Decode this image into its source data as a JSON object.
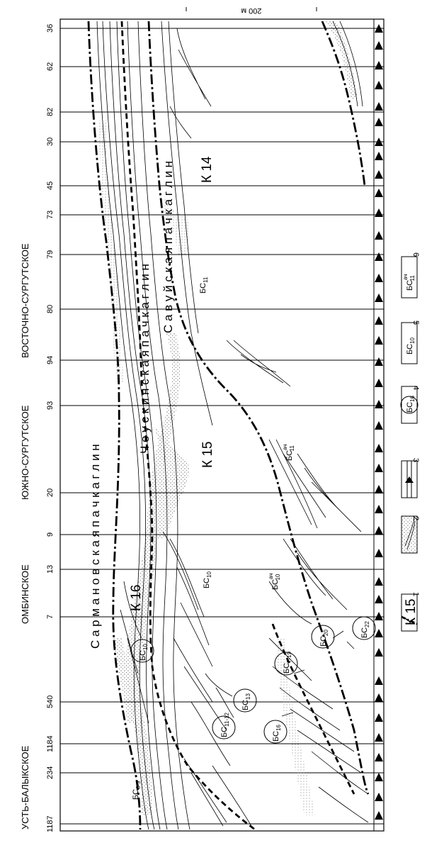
{
  "scale_label": "200 м",
  "areas": [
    {
      "name": "УСТЬ-БАЛЫКСКОЕ"
    },
    {
      "name": "ОМБИНСКОЕ"
    },
    {
      "name": "ЮЖНО-СУРГУТСКОЕ"
    },
    {
      "name": "ВОСТОЧНО-СУРГУТСКОЕ"
    }
  ],
  "wells": [
    "1187",
    "234",
    "1184",
    "540",
    "7",
    "13",
    "9",
    "20",
    "93",
    "94",
    "80",
    "79",
    "73",
    "45",
    "30",
    "82",
    "62",
    "36"
  ],
  "formations": {
    "k16": "К 16",
    "k15": "К 15",
    "k14": "К 14",
    "sarmanovskaya": "С а р м а н о в с к а я     п а ч к а     г л и н",
    "cheuskinskaya": "Ч е у с к и н с к а я     п а ч к а     г л и н",
    "savuiskaya": "С а в у й с к а я     п а ч к а     г л и н"
  },
  "beds": [
    {
      "base": "БС",
      "sub": "8-9"
    },
    {
      "base": "БС",
      "sub": "10"
    },
    {
      "base": "БС",
      "sub": "11-12"
    },
    {
      "base": "БС",
      "sub": "13"
    },
    {
      "base": "БС",
      "sub": "16"
    },
    {
      "base": "БС",
      "sub": "7-19"
    },
    {
      "base": "БС",
      "sub": "20"
    },
    {
      "base": "БС",
      "sub": "22"
    },
    {
      "base": "БС",
      "sub": "10"
    },
    {
      "base": "БС",
      "sup": "ач",
      "sub": "10"
    },
    {
      "base": "БС",
      "sup": "ач",
      "sub": "11"
    },
    {
      "base": "БС",
      "sub": "11"
    }
  ],
  "legend": [
    {
      "num": "1",
      "label": "К 15"
    },
    {
      "num": "2",
      "label": ""
    },
    {
      "num": "3",
      "label": ""
    },
    {
      "num": "4",
      "label": "БС",
      "sub": "16"
    },
    {
      "num": "5",
      "label": "БС",
      "sub": "10"
    },
    {
      "num": "6",
      "label": "БС",
      "sup": "ач",
      "sub": "11"
    }
  ]
}
